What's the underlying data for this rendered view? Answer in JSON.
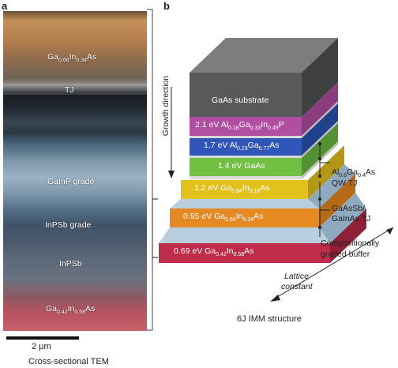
{
  "panel_a": {
    "letter": "a",
    "layers": {
      "top": "Ga0.66In0.34As",
      "tj": "TJ",
      "gainp": "GaInP grade",
      "inpsb_grade": "InPSb grade",
      "inpsb": "InPSb",
      "bottom": "Ga0.42In0.58As"
    },
    "scalebar": "2 μm",
    "caption": "Cross-sectional TEM"
  },
  "panel_b": {
    "letter": "b",
    "growth_direction": "Growth direction",
    "layers": {
      "substrate": "GaAs substrate",
      "l1": "2.1 eV Al0.18Ga0.33In0.49P",
      "l2": "1.7 eV Al0.23Ga0.77As",
      "l3": "1.4 eV GaAs",
      "l4": "1.2 eV Ga0.84In0.16As",
      "l5": "0.95 eV Ga0.66In0.34As",
      "l6": "0.69 eV Ga0.42In0.58As"
    },
    "annotations": {
      "qw_tj_1": "Al0.6Ga0.4As",
      "qw_tj_2": "QW TJ",
      "tj2_1": "GaAsSb/",
      "tj2_2": "GaInAs TJ",
      "buffer_1": "Compositionally",
      "buffer_2": "graded buffer",
      "lattice_1": "Lattice",
      "lattice_2": "constant"
    },
    "caption": "6J IMM structure"
  },
  "colors": {
    "substrate": "#58595b",
    "l1": "#b04fa0",
    "l2": "#2f56b8",
    "l3": "#72c043",
    "l4": "#e2c21a",
    "l5": "#e58a22",
    "l6": "#c02d4a",
    "buffer": "#b9cfe0"
  }
}
